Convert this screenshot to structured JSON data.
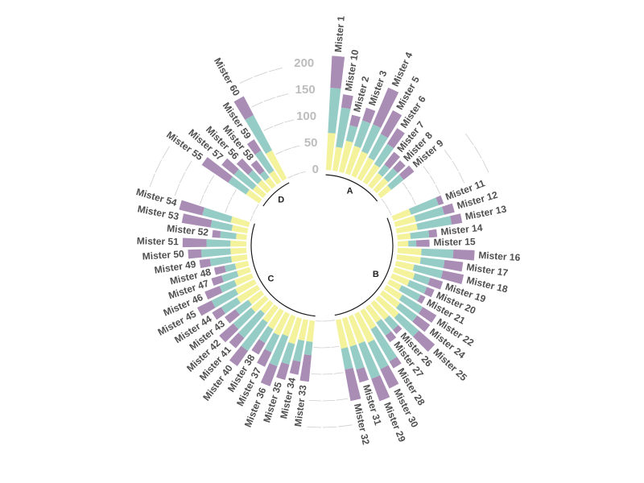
{
  "colors": {
    "bottom": "#f4f29b",
    "middle": "#95cdc6",
    "top": "#a98db5",
    "grid": "#cccccc",
    "group_line": "#1a1a1a"
  },
  "chart_data": {
    "type": "circular stacked bar",
    "ylim": [
      0,
      200
    ],
    "yticks": [
      0,
      50,
      100,
      150,
      200
    ],
    "groups": [
      {
        "label": "A",
        "bars": [
          {
            "name": "Mister 1",
            "values": [
              70,
              85,
              60
            ]
          },
          {
            "name": "Mister 10",
            "values": [
              45,
              75,
              25
            ]
          },
          {
            "name": "Mister 2",
            "values": [
              60,
              30,
              20
            ]
          },
          {
            "name": "Mister 3",
            "values": [
              55,
              50,
              25
            ]
          },
          {
            "name": "Mister 4",
            "values": [
              50,
              55,
              75
            ]
          },
          {
            "name": "Mister 5",
            "values": [
              45,
              50,
              50
            ]
          },
          {
            "name": "Mister 6",
            "values": [
              40,
              45,
              35
            ]
          },
          {
            "name": "Mister 7",
            "values": [
              30,
              20,
              30
            ]
          },
          {
            "name": "Mister 8",
            "values": [
              30,
              25,
              20
            ]
          },
          {
            "name": "Mister 9",
            "values": [
              25,
              30,
              25
            ]
          }
        ]
      },
      {
        "label": "B",
        "bars": [
          {
            "name": "Mister 11",
            "values": [
              35,
              55,
              10
            ]
          },
          {
            "name": "Mister 12",
            "values": [
              40,
              55,
              20
            ]
          },
          {
            "name": "Mister 13",
            "values": [
              40,
              65,
              20
            ]
          },
          {
            "name": "Mister 14",
            "values": [
              25,
              35,
              15
            ]
          },
          {
            "name": "Mister 15",
            "values": [
              20,
              15,
              25
            ]
          },
          {
            "name": "Mister 16",
            "values": [
              45,
              60,
              40
            ]
          },
          {
            "name": "Mister 17",
            "values": [
              45,
              45,
              35
            ]
          },
          {
            "name": "Mister 18",
            "values": [
              35,
              55,
              40
            ]
          },
          {
            "name": "Mister 19",
            "values": [
              40,
              30,
              25
            ]
          },
          {
            "name": "Mister 20",
            "values": [
              35,
              35,
              15
            ]
          },
          {
            "name": "Mister 21",
            "values": [
              25,
              40,
              10
            ]
          },
          {
            "name": "Mister 22",
            "values": [
              35,
              45,
              30
            ]
          },
          {
            "name": "Mister 24",
            "values": [
              40,
              40,
              30
            ]
          },
          {
            "name": "Mister 25",
            "values": [
              50,
              50,
              40
            ]
          },
          {
            "name": "Mister 26",
            "values": [
              40,
              25,
              10
            ]
          },
          {
            "name": "Mister 27",
            "values": [
              35,
              30,
              15
            ]
          },
          {
            "name": "Mister 28",
            "values": [
              40,
              70,
              15
            ]
          },
          {
            "name": "Mister 30",
            "values": [
              60,
              55,
              40
            ]
          },
          {
            "name": "Mister 29",
            "values": [
              55,
              70,
              45
            ]
          },
          {
            "name": "Mister 31",
            "values": [
              55,
              45,
              25
            ]
          },
          {
            "name": "Mister 32",
            "values": [
              55,
              40,
              60
            ]
          }
        ]
      },
      {
        "label": "C",
        "bars": [
          {
            "name": "Mister 33",
            "values": [
              40,
              25,
              50
            ]
          },
          {
            "name": "Mister 34",
            "values": [
              40,
              40,
              25
            ]
          },
          {
            "name": "Mister 35",
            "values": [
              50,
              40,
              30
            ]
          },
          {
            "name": "Mister 36",
            "values": [
              40,
              60,
              40
            ]
          },
          {
            "name": "Mister 37",
            "values": [
              45,
              35,
              30
            ]
          },
          {
            "name": "Mister 38",
            "values": [
              40,
              30,
              25
            ]
          },
          {
            "name": "Mister 40",
            "values": [
              35,
              65,
              35
            ]
          },
          {
            "name": "Mister 41",
            "values": [
              25,
              60,
              25
            ]
          },
          {
            "name": "Mister 42",
            "values": [
              35,
              45,
              35
            ]
          },
          {
            "name": "Mister 43",
            "values": [
              30,
              30,
              25
            ]
          },
          {
            "name": "Mister 44",
            "values": [
              45,
              35,
              20
            ]
          },
          {
            "name": "Mister 45",
            "values": [
              40,
              50,
              30
            ]
          },
          {
            "name": "Mister 46",
            "values": [
              35,
              30,
              30
            ]
          },
          {
            "name": "Mister 47",
            "values": [
              25,
              30,
              20
            ]
          },
          {
            "name": "Mister 48",
            "values": [
              25,
              20,
              20
            ]
          },
          {
            "name": "Mister 49",
            "values": [
              30,
              40,
              20
            ]
          },
          {
            "name": "Mister 50",
            "values": [
              30,
              55,
              25
            ]
          },
          {
            "name": "Mister 51",
            "values": [
              30,
              45,
              45
            ]
          },
          {
            "name": "Mister 52",
            "values": [
              20,
              30,
              15
            ]
          },
          {
            "name": "Mister 53",
            "values": [
              30,
              40,
              55
            ]
          },
          {
            "name": "Mister 54",
            "values": [
              35,
              55,
              45
            ]
          }
        ]
      },
      {
        "label": "D",
        "bars": [
          {
            "name": "Mister 55",
            "values": [
              30,
              40,
              60
            ]
          },
          {
            "name": "Mister 57",
            "values": [
              25,
              45,
              30
            ]
          },
          {
            "name": "Mister 56",
            "values": [
              25,
              25,
              30
            ]
          },
          {
            "name": "Mister 58",
            "values": [
              20,
              15,
              25
            ]
          },
          {
            "name": "Mister 59",
            "values": [
              25,
              45,
              25
            ]
          },
          {
            "name": "Mister 60",
            "values": [
              60,
              75,
              40
            ]
          }
        ]
      }
    ]
  }
}
